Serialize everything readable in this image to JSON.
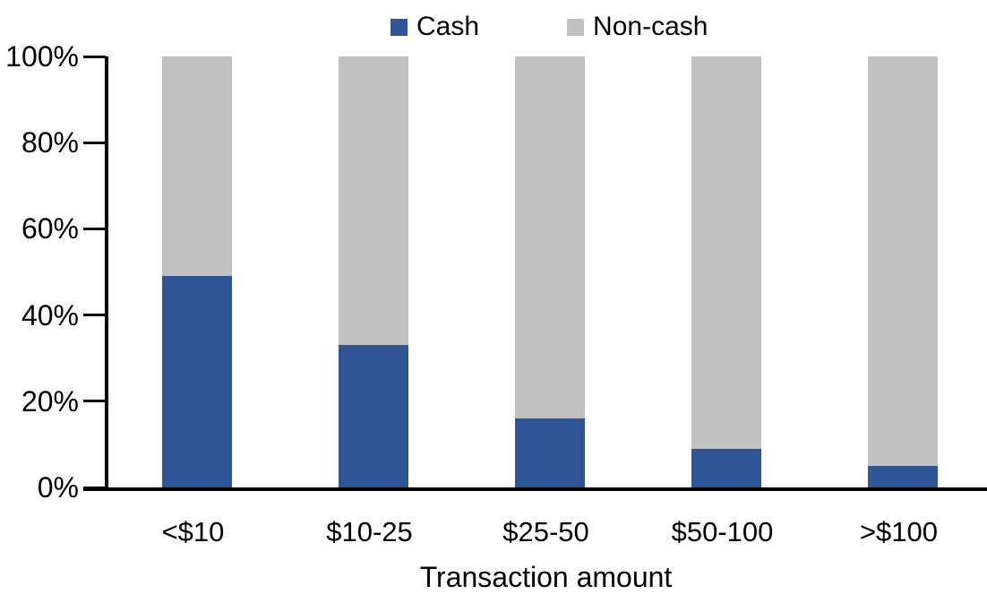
{
  "chart_data": {
    "type": "bar",
    "stacked": true,
    "stacked_to_100": true,
    "title": "",
    "xlabel": "Transaction amount",
    "ylabel": "",
    "categories": [
      "<$10",
      "$10-25",
      "$25-50",
      "$50-100",
      ">$100"
    ],
    "series": [
      {
        "name": "Cash",
        "color": "#2F5597",
        "values": [
          49,
          33,
          16,
          9,
          5
        ]
      },
      {
        "name": "Non-cash",
        "color": "#C1C1C1",
        "values": [
          51,
          67,
          84,
          91,
          95
        ]
      }
    ],
    "ylim": [
      0,
      100
    ],
    "yticks": [
      0,
      20,
      40,
      60,
      80,
      100
    ],
    "ytick_labels": [
      "0%",
      "20%",
      "40%",
      "60%",
      "80%",
      "100%"
    ],
    "legend_position": "top-center",
    "grid": false,
    "axis_color": "#000000",
    "background_color": "#FFFFFF"
  }
}
